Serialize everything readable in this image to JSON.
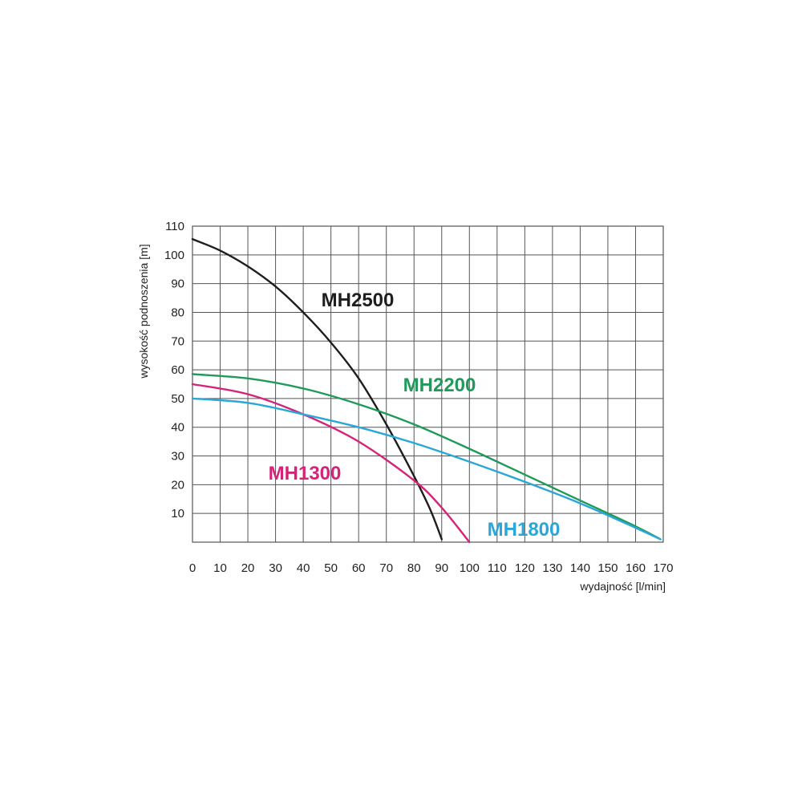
{
  "chart_data": {
    "type": "line",
    "xlabel": "wydajność [l/min]",
    "ylabel": "wysokość podnoszenia [m]",
    "xlim": [
      0,
      170
    ],
    "ylim": [
      0,
      110
    ],
    "x_ticks": [
      0,
      10,
      20,
      30,
      40,
      50,
      60,
      70,
      80,
      90,
      100,
      110,
      120,
      130,
      140,
      150,
      160,
      170
    ],
    "y_ticks": [
      10,
      20,
      30,
      40,
      50,
      60,
      70,
      80,
      90,
      100,
      110
    ],
    "grid": true,
    "legend": "inline labels",
    "series": [
      {
        "name": "MH2500",
        "color": "#1e1e1e",
        "points": [
          [
            0,
            105.5
          ],
          [
            10,
            101.5
          ],
          [
            20,
            96
          ],
          [
            30,
            89
          ],
          [
            40,
            80
          ],
          [
            50,
            69.5
          ],
          [
            60,
            57
          ],
          [
            70,
            41
          ],
          [
            80,
            23
          ],
          [
            86,
            11
          ],
          [
            90,
            1
          ]
        ]
      },
      {
        "name": "MH2200",
        "color": "#1f9a5a",
        "points": [
          [
            0,
            58.5
          ],
          [
            20,
            57
          ],
          [
            40,
            53.5
          ],
          [
            60,
            48
          ],
          [
            80,
            41
          ],
          [
            100,
            32.5
          ],
          [
            120,
            23.5
          ],
          [
            140,
            14.5
          ],
          [
            160,
            5.5
          ],
          [
            169,
            1
          ]
        ]
      },
      {
        "name": "MH1300",
        "color": "#d6237a",
        "points": [
          [
            0,
            55
          ],
          [
            20,
            51.5
          ],
          [
            40,
            44.5
          ],
          [
            60,
            35
          ],
          [
            80,
            21.5
          ],
          [
            90,
            12
          ],
          [
            100,
            0
          ]
        ]
      },
      {
        "name": "MH1800",
        "color": "#2aa7d8",
        "points": [
          [
            0,
            50
          ],
          [
            20,
            48.5
          ],
          [
            40,
            44.5
          ],
          [
            60,
            40
          ],
          [
            80,
            34.5
          ],
          [
            100,
            28
          ],
          [
            120,
            21
          ],
          [
            140,
            13.5
          ],
          [
            160,
            5
          ],
          [
            169,
            1
          ]
        ]
      }
    ]
  }
}
